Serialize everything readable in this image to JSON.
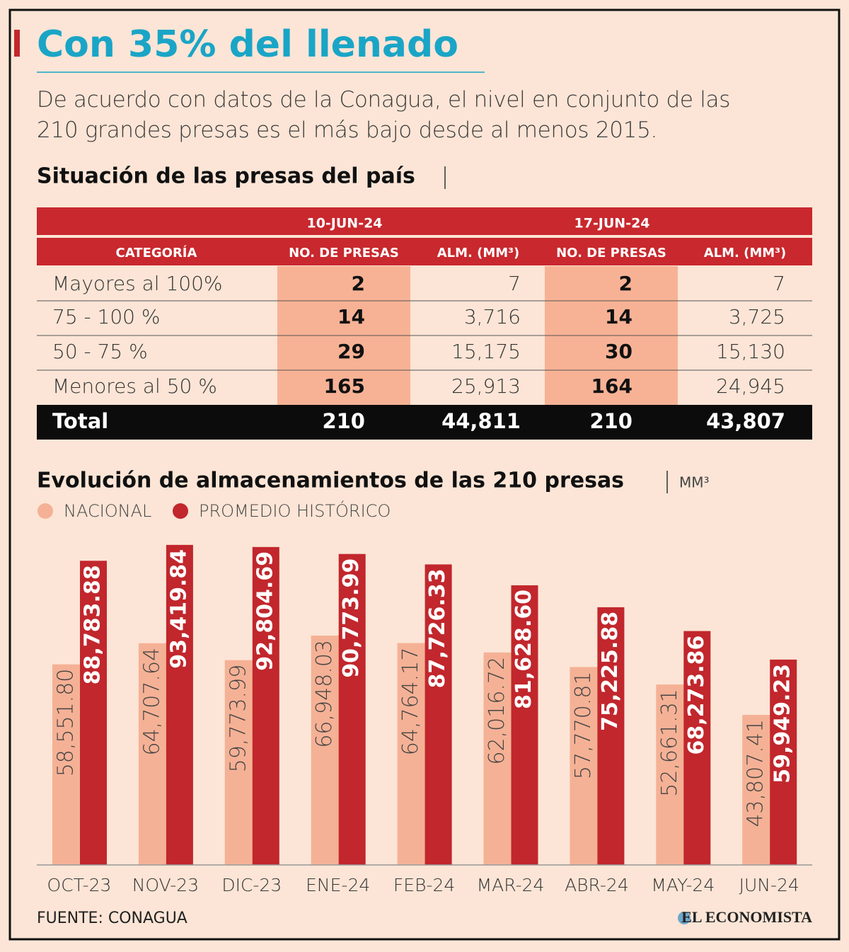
{
  "header": {
    "title": "Con 35% del llenado",
    "subtitle": "De acuerdo con datos de la Conagua, el nivel en conjunto de las 210 grandes presas es el más bajo desde al menos 2015."
  },
  "table": {
    "title": "Situación de las presas del país",
    "dates": [
      "10-JUN-24",
      "17-JUN-24"
    ],
    "columns": [
      "CATEGORÍA",
      "NO. DE PRESAS",
      "ALM. (MM³)",
      "NO. DE PRESAS",
      "ALM. (MM³)"
    ],
    "rows": [
      [
        "Mayores al 100%",
        "2",
        "7",
        "2",
        "7"
      ],
      [
        "75 - 100 %",
        "14",
        "3,716",
        "14",
        "3,725"
      ],
      [
        "50 - 75 %",
        "29",
        "15,175",
        "30",
        "15,130"
      ],
      [
        "Menores al 50 %",
        "165",
        "25,913",
        "164",
        "24,945"
      ]
    ],
    "total": [
      "Total",
      "210",
      "44,811",
      "210",
      "43,807"
    ]
  },
  "chart_data": {
    "type": "bar",
    "title": "Evolución de almacenamientos de las 210 presas",
    "unit": "MM³",
    "categories": [
      "OCT-23",
      "NOV-23",
      "DIC-23",
      "ENE-24",
      "FEB-24",
      "MAR-24",
      "ABR-24",
      "MAY-24",
      "JUN-24"
    ],
    "series": [
      {
        "name": "NACIONAL",
        "color": "#f5b195",
        "values": [
          58551.8,
          64707.64,
          59773.99,
          66948.03,
          64764.17,
          62016.72,
          57770.81,
          52661.31,
          43807.41
        ],
        "value_labels": [
          "58,551.80",
          "64,707.64",
          "59,773.99",
          "66,948.03",
          "64,764.17",
          "62,016.72",
          "57,770.81",
          "52,661.31",
          "43,807.41"
        ]
      },
      {
        "name": "PROMEDIO HISTÓRICO",
        "color": "#c1272d",
        "values": [
          88783.88,
          93419.84,
          92804.69,
          90773.99,
          87726.33,
          81628.6,
          75225.88,
          68273.86,
          59949.23
        ],
        "value_labels": [
          "88,783.88",
          "93,419.84",
          "92,804.69",
          "90,773.99",
          "87,726.33",
          "81,628.60",
          "75,225.88",
          "68,273.86",
          "59,949.23"
        ]
      }
    ],
    "ylim": [
      0,
      100000
    ]
  },
  "footer": {
    "source": "FUENTE: CONAGUA",
    "brand": "EL ECONOMISTA"
  }
}
